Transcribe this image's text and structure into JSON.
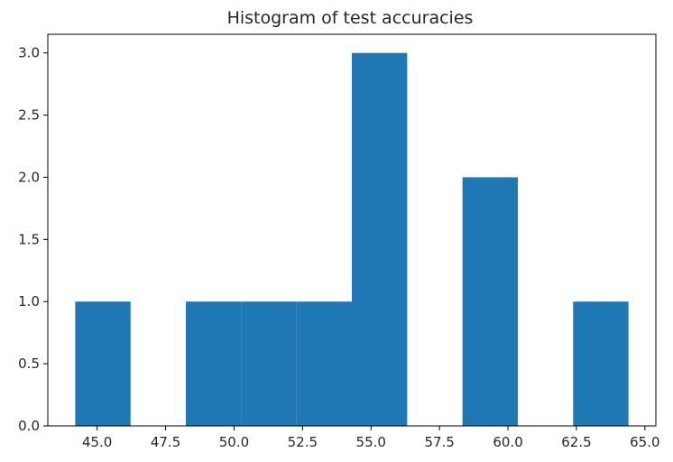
{
  "chart_data": {
    "type": "bar",
    "title": "Histogram of test accuracies",
    "xlabel": "",
    "ylabel": "",
    "bin_edges": [
      44.2,
      46.22,
      48.24,
      50.26,
      52.28,
      54.3,
      56.32,
      58.34,
      60.36,
      62.38,
      64.4
    ],
    "counts": [
      1,
      0,
      1,
      1,
      1,
      3,
      0,
      2,
      0,
      1
    ],
    "xlim": [
      43.2,
      65.4
    ],
    "ylim": [
      0,
      3.15
    ],
    "xticks": [
      45.0,
      47.5,
      50.0,
      52.5,
      55.0,
      57.5,
      60.0,
      62.5,
      65.0
    ],
    "yticks": [
      0.0,
      0.5,
      1.0,
      1.5,
      2.0,
      2.5,
      3.0
    ],
    "xtick_labels": [
      "45.0",
      "47.5",
      "50.0",
      "52.5",
      "55.0",
      "57.5",
      "60.0",
      "62.5",
      "65.0"
    ],
    "ytick_labels": [
      "0.0",
      "0.5",
      "1.0",
      "1.5",
      "2.0",
      "2.5",
      "3.0"
    ],
    "bar_color": "#1f77b4",
    "grid": false
  }
}
